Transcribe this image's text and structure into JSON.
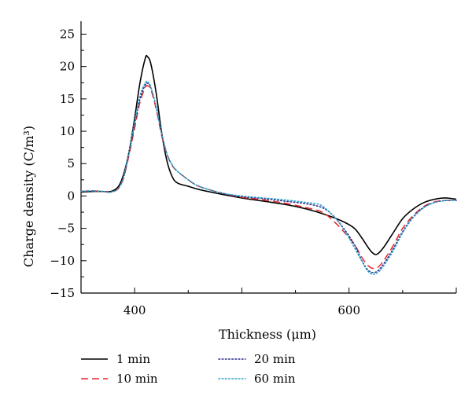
{
  "chart_data": {
    "type": "line",
    "xlabel": "Thickness (μm)",
    "ylabel": "Charge density (C/m³)",
    "xlim": [
      350,
      700
    ],
    "ylim": [
      -15,
      27
    ],
    "x_ticks": [
      400,
      600
    ],
    "y_ticks": [
      25,
      20,
      15,
      10,
      5,
      0,
      -5,
      -10,
      -15
    ],
    "x_tick_labels": [
      "400",
      "600"
    ],
    "y_tick_labels": [
      "25",
      "20",
      "15",
      "10",
      "5",
      "0",
      "−5",
      "−10",
      "−15"
    ],
    "legend_placement": "bottom",
    "series": [
      {
        "name": "1 min",
        "style": "solid",
        "color": "#000000",
        "points": [
          [
            350,
            0.6
          ],
          [
            360,
            0.7
          ],
          [
            370,
            0.7
          ],
          [
            378,
            0.7
          ],
          [
            385,
            1.5
          ],
          [
            390,
            3.5
          ],
          [
            395,
            7
          ],
          [
            400,
            12
          ],
          [
            405,
            17.5
          ],
          [
            410,
            21.3
          ],
          [
            412,
            21.5
          ],
          [
            415,
            20.5
          ],
          [
            420,
            16
          ],
          [
            425,
            10
          ],
          [
            430,
            5.5
          ],
          [
            435,
            3
          ],
          [
            440,
            2
          ],
          [
            450,
            1.5
          ],
          [
            460,
            1
          ],
          [
            480,
            0.3
          ],
          [
            500,
            -0.3
          ],
          [
            520,
            -0.8
          ],
          [
            540,
            -1.3
          ],
          [
            560,
            -2
          ],
          [
            580,
            -3
          ],
          [
            595,
            -4
          ],
          [
            605,
            -5
          ],
          [
            612,
            -6.5
          ],
          [
            618,
            -8
          ],
          [
            622,
            -8.8
          ],
          [
            626,
            -9
          ],
          [
            632,
            -8
          ],
          [
            640,
            -6
          ],
          [
            650,
            -3.5
          ],
          [
            660,
            -2
          ],
          [
            670,
            -1
          ],
          [
            680,
            -0.5
          ],
          [
            690,
            -0.3
          ],
          [
            700,
            -0.5
          ]
        ]
      },
      {
        "name": "10 min",
        "style": "dashed",
        "color": "#e8262a",
        "points": [
          [
            350,
            0.7
          ],
          [
            360,
            0.8
          ],
          [
            370,
            0.7
          ],
          [
            378,
            0.6
          ],
          [
            385,
            1.2
          ],
          [
            390,
            3
          ],
          [
            395,
            6.5
          ],
          [
            400,
            10.5
          ],
          [
            405,
            14.5
          ],
          [
            410,
            16.8
          ],
          [
            412,
            17
          ],
          [
            415,
            16.5
          ],
          [
            420,
            13.5
          ],
          [
            425,
            9.5
          ],
          [
            430,
            6.5
          ],
          [
            435,
            4.7
          ],
          [
            440,
            3.8
          ],
          [
            450,
            2.5
          ],
          [
            460,
            1.5
          ],
          [
            480,
            0.5
          ],
          [
            500,
            -0.2
          ],
          [
            520,
            -0.6
          ],
          [
            540,
            -1.1
          ],
          [
            560,
            -1.8
          ],
          [
            575,
            -2.5
          ],
          [
            585,
            -3.8
          ],
          [
            595,
            -5.5
          ],
          [
            605,
            -7.5
          ],
          [
            612,
            -9.5
          ],
          [
            618,
            -10.8
          ],
          [
            624,
            -11.2
          ],
          [
            630,
            -10.5
          ],
          [
            640,
            -8
          ],
          [
            650,
            -5
          ],
          [
            660,
            -3
          ],
          [
            670,
            -1.6
          ],
          [
            680,
            -0.9
          ],
          [
            690,
            -0.7
          ],
          [
            700,
            -0.7
          ]
        ]
      },
      {
        "name": "20 min",
        "style": "dotted",
        "color": "#2b2b88",
        "points": [
          [
            350,
            0.7
          ],
          [
            360,
            0.8
          ],
          [
            370,
            0.7
          ],
          [
            378,
            0.6
          ],
          [
            385,
            1.2
          ],
          [
            390,
            3
          ],
          [
            395,
            6.8
          ],
          [
            400,
            11
          ],
          [
            405,
            15
          ],
          [
            410,
            17.2
          ],
          [
            412,
            17.4
          ],
          [
            415,
            16.8
          ],
          [
            420,
            13.8
          ],
          [
            425,
            9.8
          ],
          [
            430,
            6.6
          ],
          [
            435,
            4.8
          ],
          [
            440,
            3.8
          ],
          [
            450,
            2.5
          ],
          [
            460,
            1.5
          ],
          [
            480,
            0.5
          ],
          [
            500,
            -0.1
          ],
          [
            520,
            -0.4
          ],
          [
            540,
            -0.8
          ],
          [
            560,
            -1.2
          ],
          [
            575,
            -1.8
          ],
          [
            585,
            -3
          ],
          [
            595,
            -5
          ],
          [
            605,
            -7.5
          ],
          [
            612,
            -10
          ],
          [
            618,
            -11.5
          ],
          [
            624,
            -11.8
          ],
          [
            630,
            -11
          ],
          [
            640,
            -8.5
          ],
          [
            650,
            -5.5
          ],
          [
            660,
            -3.2
          ],
          [
            670,
            -1.7
          ],
          [
            680,
            -1
          ],
          [
            690,
            -0.7
          ],
          [
            700,
            -0.7
          ]
        ]
      },
      {
        "name": "60 min",
        "style": "dotted",
        "color": "#2aa4c8",
        "points": [
          [
            350,
            0.7
          ],
          [
            360,
            0.8
          ],
          [
            370,
            0.7
          ],
          [
            378,
            0.6
          ],
          [
            385,
            1.2
          ],
          [
            390,
            3.2
          ],
          [
            395,
            7
          ],
          [
            400,
            11.5
          ],
          [
            405,
            15.5
          ],
          [
            410,
            17.5
          ],
          [
            412,
            17.6
          ],
          [
            415,
            16.9
          ],
          [
            420,
            13.8
          ],
          [
            425,
            9.8
          ],
          [
            430,
            6.6
          ],
          [
            435,
            4.8
          ],
          [
            440,
            3.8
          ],
          [
            450,
            2.5
          ],
          [
            460,
            1.5
          ],
          [
            480,
            0.5
          ],
          [
            500,
            0
          ],
          [
            520,
            -0.3
          ],
          [
            540,
            -0.6
          ],
          [
            560,
            -1
          ],
          [
            572,
            -1.3
          ],
          [
            580,
            -2.2
          ],
          [
            590,
            -4
          ],
          [
            600,
            -6.5
          ],
          [
            610,
            -9.5
          ],
          [
            617,
            -11.5
          ],
          [
            623,
            -12.1
          ],
          [
            630,
            -11.3
          ],
          [
            640,
            -8.8
          ],
          [
            650,
            -5.7
          ],
          [
            660,
            -3.3
          ],
          [
            670,
            -1.8
          ],
          [
            680,
            -1
          ],
          [
            690,
            -0.7
          ],
          [
            700,
            -0.7
          ]
        ]
      }
    ]
  }
}
